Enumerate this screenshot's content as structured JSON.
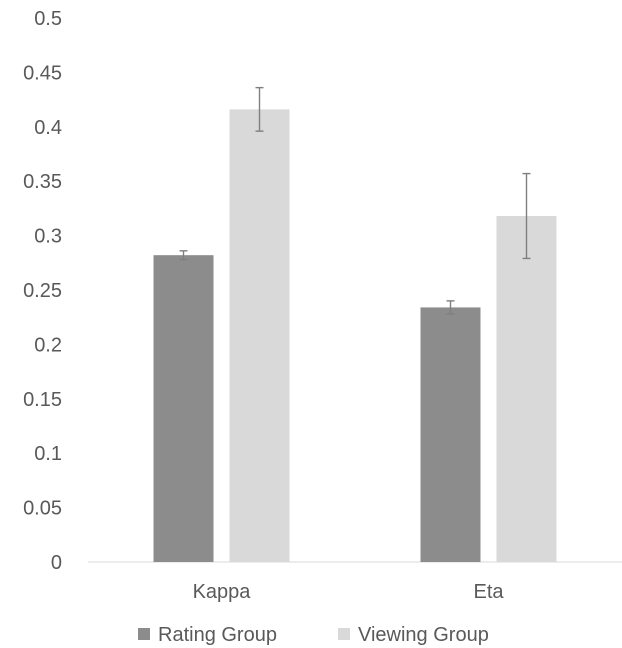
{
  "chart_data": {
    "type": "bar",
    "title": "",
    "xlabel": "",
    "ylabel": "",
    "ylim": [
      0,
      0.5
    ],
    "yticks": [
      "0",
      "0.05",
      "0.1",
      "0.15",
      "0.2",
      "0.25",
      "0.3",
      "0.35",
      "0.4",
      "0.45",
      "0.5"
    ],
    "grid": false,
    "legend_position": "bottom",
    "categories": [
      "Kappa",
      "Eta"
    ],
    "series": [
      {
        "name": "Rating Group",
        "color": "#8c8c8c",
        "values": [
          0.282,
          0.234
        ],
        "errors": [
          0.004,
          0.006
        ]
      },
      {
        "name": "Viewing Group",
        "color": "#d9d9d9",
        "values": [
          0.416,
          0.318
        ],
        "errors": [
          0.02,
          0.039
        ]
      }
    ]
  }
}
